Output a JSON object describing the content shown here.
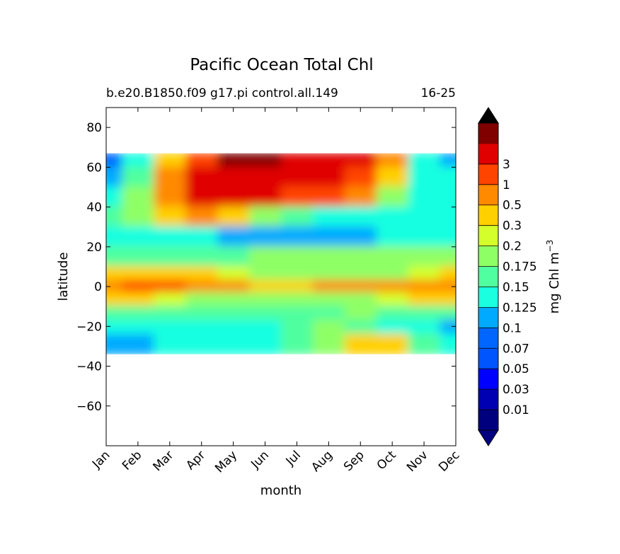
{
  "chart_data": {
    "type": "heatmap",
    "title": "Pacific Ocean Total Chl",
    "subtitle_left": "b.e20.B1850.f09 g17.pi control.all.149",
    "subtitle_right": "16-25",
    "xlabel": "month",
    "ylabel": "latitude",
    "x_ticks": [
      "Jan",
      "Feb",
      "Mar",
      "Apr",
      "May",
      "Jun",
      "Jul",
      "Aug",
      "Sep",
      "Oct",
      "Nov",
      "Dec"
    ],
    "ylim": [
      -80,
      90
    ],
    "y_ticks": [
      80,
      60,
      40,
      20,
      0,
      -20,
      -40,
      -60
    ],
    "data_lat_range": [
      -34,
      67
    ],
    "colorbar": {
      "label": "mg Chl m",
      "label_exponent": "−3",
      "levels": [
        "0.01",
        "0.03",
        "0.05",
        "0.07",
        "0.1",
        "0.125",
        "0.15",
        "0.175",
        "0.2",
        "0.3",
        "0.5",
        "1",
        "3"
      ],
      "colors": [
        "#00007f",
        "#0000b2",
        "#0000ff",
        "#0055ff",
        "#0066ff",
        "#00aaff",
        "#19ffe0",
        "#50ff9f",
        "#8fff66",
        "#d5ff2a",
        "#ffd000",
        "#ff8a00",
        "#ff4400",
        "#e00000",
        "#800000"
      ],
      "extend_low_color": "#000080",
      "extend_high_color": "#000000"
    },
    "bands": [
      {
        "lat": [
          60,
          67
        ],
        "months": {
          "Jan": "0.05",
          "Feb": "0.1",
          "Mar": "0.2",
          "Apr": "0.5",
          "May": "3",
          "Jun": "3",
          "Jul": "1",
          "Aug": "1",
          "Sep": "1",
          "Oct": "0.3",
          "Nov": "0.1",
          "Dec": "0.07"
        }
      },
      {
        "lat": [
          50,
          60
        ],
        "months": {
          "Jan": "0.07",
          "Feb": "0.125",
          "Mar": "0.3",
          "Apr": "1",
          "May": "1",
          "Jun": "1",
          "Jul": "1",
          "Aug": "1",
          "Sep": "0.5",
          "Oct": "0.2",
          "Nov": "0.1",
          "Dec": "0.1"
        }
      },
      {
        "lat": [
          40,
          50
        ],
        "months": {
          "Jan": "0.1",
          "Feb": "0.15",
          "Mar": "0.3",
          "Apr": "1",
          "May": "1",
          "Jun": "1",
          "Jul": "0.5",
          "Aug": "0.5",
          "Sep": "0.3",
          "Oct": "0.15",
          "Nov": "0.1",
          "Dec": "0.1"
        }
      },
      {
        "lat": [
          30,
          40
        ],
        "months": {
          "Jan": "0.125",
          "Feb": "0.15",
          "Mar": "0.2",
          "Apr": "0.3",
          "May": "0.2",
          "Jun": "0.15",
          "Jul": "0.125",
          "Aug": "0.1",
          "Sep": "0.1",
          "Oct": "0.1",
          "Nov": "0.1",
          "Dec": "0.1"
        }
      },
      {
        "lat": [
          20,
          30
        ],
        "months": {
          "Jan": "0.1",
          "Feb": "0.1",
          "Mar": "0.1",
          "Apr": "0.1",
          "May": "0.07",
          "Jun": "0.07",
          "Jul": "0.07",
          "Aug": "0.07",
          "Sep": "0.07",
          "Oct": "0.1",
          "Nov": "0.1",
          "Dec": "0.1"
        }
      },
      {
        "lat": [
          10,
          20
        ],
        "months": {
          "Jan": "0.125",
          "Feb": "0.125",
          "Mar": "0.125",
          "Apr": "0.125",
          "May": "0.125",
          "Jun": "0.15",
          "Jul": "0.15",
          "Aug": "0.15",
          "Sep": "0.15",
          "Oct": "0.15",
          "Nov": "0.15",
          "Dec": "0.15"
        }
      },
      {
        "lat": [
          3,
          10
        ],
        "months": {
          "Jan": "0.2",
          "Feb": "0.2",
          "Mar": "0.2",
          "Apr": "0.2",
          "May": "0.175",
          "Jun": "0.15",
          "Jul": "0.15",
          "Aug": "0.15",
          "Sep": "0.15",
          "Oct": "0.15",
          "Nov": "0.175",
          "Dec": "0.2"
        }
      },
      {
        "lat": [
          -3,
          3
        ],
        "months": {
          "Jan": "0.3",
          "Feb": "0.5",
          "Mar": "0.5",
          "Apr": "0.3",
          "May": "0.3",
          "Jun": "0.2",
          "Jul": "0.2",
          "Aug": "0.3",
          "Sep": "0.3",
          "Oct": "0.3",
          "Nov": "0.3",
          "Dec": "0.3"
        }
      },
      {
        "lat": [
          -10,
          -3
        ],
        "months": {
          "Jan": "0.2",
          "Feb": "0.2",
          "Mar": "0.175",
          "Apr": "0.15",
          "May": "0.15",
          "Jun": "0.15",
          "Jul": "0.15",
          "Aug": "0.15",
          "Sep": "0.15",
          "Oct": "0.175",
          "Nov": "0.2",
          "Dec": "0.2"
        }
      },
      {
        "lat": [
          -17,
          -10
        ],
        "months": {
          "Jan": "0.125",
          "Feb": "0.125",
          "Mar": "0.125",
          "Apr": "0.125",
          "May": "0.125",
          "Jun": "0.125",
          "Jul": "0.125",
          "Aug": "0.125",
          "Sep": "0.15",
          "Oct": "0.125",
          "Nov": "0.125",
          "Dec": "0.125"
        }
      },
      {
        "lat": [
          -24,
          -17
        ],
        "months": {
          "Jan": "0.1",
          "Feb": "0.1",
          "Mar": "0.1",
          "Apr": "0.1",
          "May": "0.1",
          "Jun": "0.1",
          "Jul": "0.125",
          "Aug": "0.15",
          "Sep": "0.125",
          "Oct": "0.1",
          "Nov": "0.1",
          "Dec": "0.07"
        }
      },
      {
        "lat": [
          -34,
          -24
        ],
        "months": {
          "Jan": "0.07",
          "Feb": "0.07",
          "Mar": "0.1",
          "Apr": "0.1",
          "May": "0.1",
          "Jun": "0.1",
          "Jul": "0.125",
          "Aug": "0.15",
          "Sep": "0.2",
          "Oct": "0.2",
          "Nov": "0.125",
          "Dec": "0.1"
        }
      }
    ]
  }
}
